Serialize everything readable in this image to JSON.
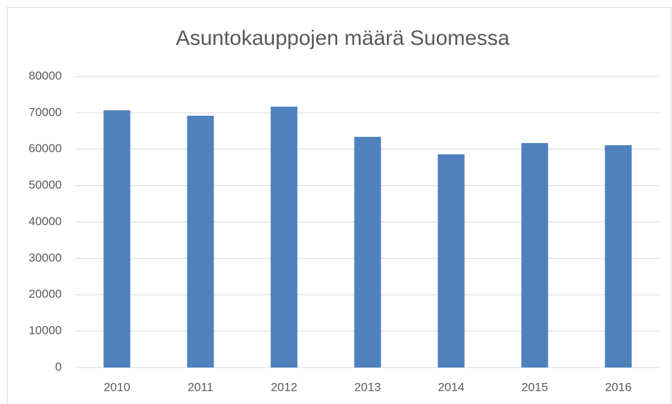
{
  "chart_data": {
    "type": "bar",
    "title": "Asuntokauppojen määrä Suomessa",
    "categories": [
      "2010",
      "2011",
      "2012",
      "2013",
      "2014",
      "2015",
      "2016"
    ],
    "values": [
      70700,
      69200,
      71700,
      63400,
      58600,
      61700,
      61100
    ],
    "color": "#4f81bd",
    "ylim": [
      0,
      80000
    ],
    "yticks": [
      0,
      10000,
      20000,
      30000,
      40000,
      50000,
      60000,
      70000,
      80000
    ],
    "grid": true
  }
}
